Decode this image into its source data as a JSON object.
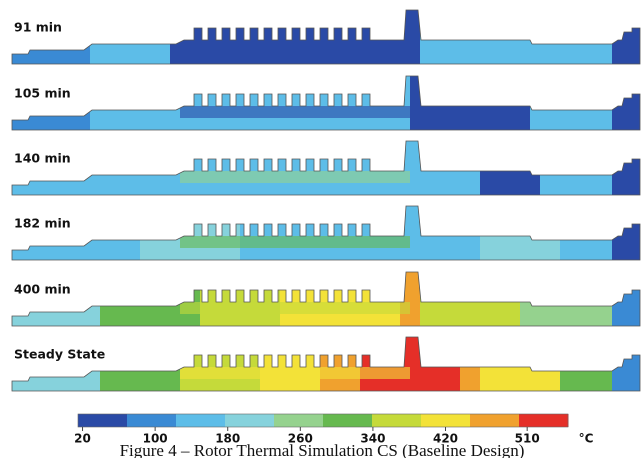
{
  "figure": {
    "panels": [
      {
        "label": "91 min"
      },
      {
        "label": "105 min"
      },
      {
        "label": "140 min"
      },
      {
        "label": "182 min"
      },
      {
        "label": "400 min"
      },
      {
        "label": "Steady State"
      }
    ],
    "colorbar": {
      "lim": [
        15,
        555
      ],
      "ticks": [
        20,
        100,
        180,
        260,
        340,
        420,
        510
      ],
      "unit": "°C",
      "colors": [
        "#2a4aa6",
        "#3a8ad4",
        "#5dbde8",
        "#86d2dc",
        "#95d28e",
        "#66b94f",
        "#c5da3a",
        "#f3e238",
        "#f0a12e",
        "#e52f28"
      ]
    },
    "caption": "Figure 4 – Rotor Thermal Simulation CS (Baseline Design)"
  }
}
